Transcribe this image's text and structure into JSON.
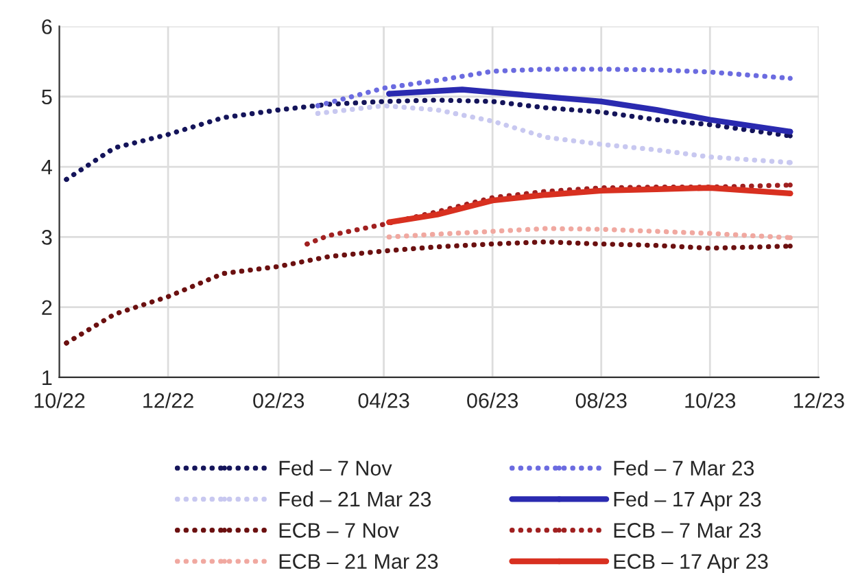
{
  "chart_data": {
    "type": "line",
    "xlim": [
      "2022-10-01",
      "2023-12-01"
    ],
    "xticks": [
      {
        "value": "2022-10-01",
        "label": "10/22"
      },
      {
        "value": "2022-12-01",
        "label": "12/22"
      },
      {
        "value": "2023-02-01",
        "label": "02/23"
      },
      {
        "value": "2023-04-01",
        "label": "04/23"
      },
      {
        "value": "2023-06-01",
        "label": "06/23"
      },
      {
        "value": "2023-08-01",
        "label": "08/23"
      },
      {
        "value": "2023-10-01",
        "label": "10/23"
      },
      {
        "value": "2023-12-01",
        "label": "12/23"
      }
    ],
    "ylim": [
      1,
      6
    ],
    "yticks": [
      1,
      2,
      3,
      4,
      5,
      6
    ],
    "grid": true,
    "legend": "bottom",
    "series": [
      {
        "name": "Fed – 7 Nov",
        "color": "#14145a",
        "line_style": "dotted",
        "x": [
          "2022-10-05",
          "2022-11-01",
          "2022-12-01",
          "2023-01-01",
          "2023-02-01",
          "2023-03-01",
          "2023-04-01",
          "2023-05-01",
          "2023-06-01",
          "2023-07-01",
          "2023-08-01",
          "2023-09-01",
          "2023-10-01",
          "2023-11-15"
        ],
        "values": [
          3.82,
          4.27,
          4.46,
          4.7,
          4.81,
          4.89,
          4.93,
          4.95,
          4.93,
          4.84,
          4.78,
          4.67,
          4.6,
          4.44
        ]
      },
      {
        "name": "Fed – 7 Mar 23",
        "color": "#6b6be0",
        "line_style": "dotted",
        "x": [
          "2023-02-23",
          "2023-04-01",
          "2023-05-01",
          "2023-06-01",
          "2023-07-01",
          "2023-08-01",
          "2023-09-01",
          "2023-10-01",
          "2023-11-15"
        ],
        "values": [
          4.87,
          5.12,
          5.23,
          5.36,
          5.39,
          5.39,
          5.38,
          5.35,
          5.26
        ]
      },
      {
        "name": "Fed – 21 Mar 23",
        "color": "#c8c8f0",
        "line_style": "dotted",
        "x": [
          "2023-02-23",
          "2023-04-01",
          "2023-05-01",
          "2023-06-01",
          "2023-07-01",
          "2023-08-01",
          "2023-09-01",
          "2023-10-01",
          "2023-11-15"
        ],
        "values": [
          4.76,
          4.87,
          4.81,
          4.65,
          4.42,
          4.32,
          4.24,
          4.14,
          4.06
        ]
      },
      {
        "name": "Fed – 17 Apr 23",
        "color": "#2a2ab0",
        "line_style": "solid",
        "x": [
          "2023-04-04",
          "2023-05-15",
          "2023-08-01",
          "2023-09-01",
          "2023-10-01",
          "2023-11-15"
        ],
        "values": [
          5.04,
          5.1,
          4.93,
          4.81,
          4.67,
          4.5
        ]
      },
      {
        "name": "ECB – 7 Nov",
        "color": "#6b1010",
        "line_style": "dotted",
        "x": [
          "2022-10-05",
          "2022-11-01",
          "2022-12-01",
          "2023-01-01",
          "2023-02-01",
          "2023-03-01",
          "2023-04-01",
          "2023-05-01",
          "2023-06-01",
          "2023-07-01",
          "2023-08-01",
          "2023-09-01",
          "2023-10-01",
          "2023-11-15"
        ],
        "values": [
          1.49,
          1.9,
          2.15,
          2.48,
          2.58,
          2.72,
          2.8,
          2.86,
          2.9,
          2.93,
          2.9,
          2.88,
          2.84,
          2.87
        ]
      },
      {
        "name": "ECB – 7 Mar 23",
        "color": "#a02020",
        "line_style": "dotted",
        "x": [
          "2023-02-17",
          "2023-03-01",
          "2023-04-01",
          "2023-05-01",
          "2023-06-01",
          "2023-07-01",
          "2023-08-01",
          "2023-09-01",
          "2023-10-01",
          "2023-11-15"
        ],
        "values": [
          2.9,
          3.02,
          3.18,
          3.36,
          3.56,
          3.65,
          3.7,
          3.71,
          3.71,
          3.74
        ]
      },
      {
        "name": "ECB – 21 Mar 23",
        "color": "#f0a8a0",
        "line_style": "dotted",
        "x": [
          "2023-04-04",
          "2023-05-01",
          "2023-06-01",
          "2023-07-01",
          "2023-08-01",
          "2023-09-01",
          "2023-10-01",
          "2023-11-15"
        ],
        "values": [
          3.0,
          3.04,
          3.08,
          3.12,
          3.11,
          3.08,
          3.05,
          2.99
        ]
      },
      {
        "name": "ECB – 17 Apr 23",
        "color": "#d83020",
        "line_style": "solid",
        "x": [
          "2023-04-04",
          "2023-05-01",
          "2023-06-01",
          "2023-07-01",
          "2023-08-01",
          "2023-09-01",
          "2023-10-01",
          "2023-11-15"
        ],
        "values": [
          3.21,
          3.32,
          3.52,
          3.6,
          3.66,
          3.68,
          3.7,
          3.62
        ]
      }
    ]
  }
}
